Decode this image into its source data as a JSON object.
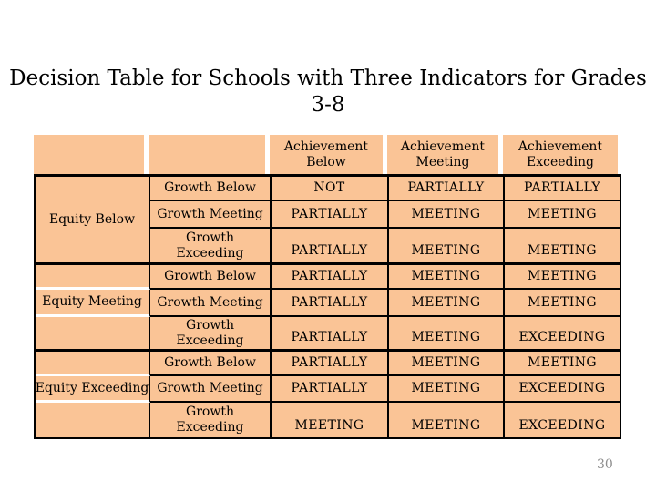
{
  "slide": {
    "title": {
      "line1": "Decision Table for Schools with Three Indicators for Grades",
      "line2": "3-8"
    },
    "page_number": "30"
  },
  "colors": {
    "cell_bg": "#FAC496",
    "table_border": "#000000",
    "page_gray": "#8E8E8E"
  },
  "table": {
    "column_headers": [
      "Achievement Below",
      "Achievement Meeting",
      "Achievement Exceeding"
    ],
    "groups": [
      {
        "equity": "Equity Below",
        "rows": [
          {
            "growth": "Growth Below",
            "below": "NOT",
            "meeting": "PARTIALLY",
            "exceeding": "PARTIALLY"
          },
          {
            "growth": "Growth Meeting",
            "below": "PARTIALLY",
            "meeting": "MEETING",
            "exceeding": "MEETING"
          },
          {
            "growth": "Growth Exceeding",
            "below": "PARTIALLY",
            "meeting": "MEETING",
            "exceeding": "MEETING"
          }
        ]
      },
      {
        "equity": "Equity Meeting",
        "rows": [
          {
            "growth": "Growth Below",
            "below": "PARTIALLY",
            "meeting": "MEETING",
            "exceeding": "MEETING"
          },
          {
            "growth": "Growth Meeting",
            "below": "PARTIALLY",
            "meeting": "MEETING",
            "exceeding": "MEETING"
          },
          {
            "growth": "Growth Exceeding",
            "below": "PARTIALLY",
            "meeting": "MEETING",
            "exceeding": "EXCEEDING"
          }
        ]
      },
      {
        "equity": "Equity Exceeding",
        "rows": [
          {
            "growth": "Growth Below",
            "below": "PARTIALLY",
            "meeting": "MEETING",
            "exceeding": "MEETING"
          },
          {
            "growth": "Growth Meeting",
            "below": "PARTIALLY",
            "meeting": "MEETING",
            "exceeding": "EXCEEDING"
          },
          {
            "growth": "Growth Exceeding",
            "below": "MEETING",
            "meeting": "MEETING",
            "exceeding": "EXCEEDING"
          }
        ]
      }
    ]
  }
}
